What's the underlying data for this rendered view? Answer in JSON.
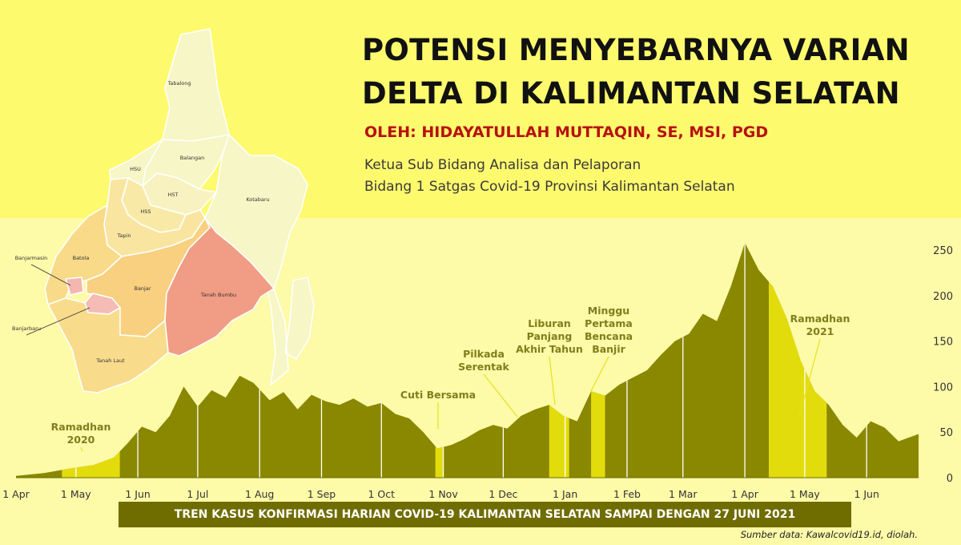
{
  "header": {
    "title_line1": "POTENSI MENYEBARNYA VARIAN",
    "title_line2": "DELTA DI KALIMANTAN SELATAN",
    "author": "OLEH: HIDAYATULLAH MUTTAQIN, SE, MSI, PGD",
    "role_line1": "Ketua Sub Bidang Analisa dan Pelaporan",
    "role_line2": "Bidang 1 Satgas Covid-19 Provinsi Kalimantan Selatan"
  },
  "map": {
    "regions": [
      {
        "name": "Tabalong",
        "color": "#f6f6c6"
      },
      {
        "name": "Balangan",
        "color": "#f6f6c6"
      },
      {
        "name": "HSU",
        "color": "#f6f6c6"
      },
      {
        "name": "HST",
        "color": "#f8f2c0"
      },
      {
        "name": "HSS",
        "color": "#f9e9a6"
      },
      {
        "name": "Kotabaru",
        "color": "#f6f6c6"
      },
      {
        "name": "Tapin",
        "color": "#f9e5a0"
      },
      {
        "name": "Batola",
        "color": "#f8da88"
      },
      {
        "name": "Banjarmasin",
        "color": "#f4b6b0"
      },
      {
        "name": "Banjar",
        "color": "#f8d080"
      },
      {
        "name": "Tanah Bumbu",
        "color": "#f19c84"
      },
      {
        "name": "Banjarbaru",
        "color": "#f4bcb4"
      },
      {
        "name": "Tanah Laut",
        "color": "#f8dc8c"
      }
    ]
  },
  "chart_data": {
    "type": "area",
    "title": "TREN KASUS KONFIRMASI HARIAN  COVID-19 KALIMANTAN SELATAN SAMPAI DENGAN 27 JUNI 2021",
    "x_start": "2020-04-01",
    "x_end": "2021-06-27",
    "xticks": [
      {
        "label": "1 Apr",
        "date": "2020-04-01"
      },
      {
        "label": "1 May",
        "date": "2020-05-01"
      },
      {
        "label": "1 Jun",
        "date": "2020-06-01"
      },
      {
        "label": "1 Jul",
        "date": "2020-07-01"
      },
      {
        "label": "1 Aug",
        "date": "2020-08-01"
      },
      {
        "label": "1 Sep",
        "date": "2020-09-01"
      },
      {
        "label": "1 Oct",
        "date": "2020-10-01"
      },
      {
        "label": "1 Nov",
        "date": "2020-11-01"
      },
      {
        "label": "1 Dec",
        "date": "2020-12-01"
      },
      {
        "label": "1 Jan",
        "date": "2021-01-01"
      },
      {
        "label": "1 Feb",
        "date": "2021-02-01"
      },
      {
        "label": "1 Mar",
        "date": "2021-03-01"
      },
      {
        "label": "1 Apr",
        "date": "2021-04-01"
      },
      {
        "label": "1 May",
        "date": "2021-05-01"
      },
      {
        "label": "1 Jun",
        "date": "2021-06-01"
      }
    ],
    "yticks": [
      0,
      50,
      100,
      150,
      200,
      250
    ],
    "ylim": [
      0,
      260
    ],
    "series": [
      {
        "color": "#8a8700",
        "points": [
          [
            "2020-04-01",
            2
          ],
          [
            "2020-04-15",
            5
          ],
          [
            "2020-04-28",
            10
          ],
          [
            "2020-05-10",
            14
          ],
          [
            "2020-05-20",
            22
          ],
          [
            "2020-05-27",
            38
          ],
          [
            "2020-06-03",
            56
          ],
          [
            "2020-06-10",
            50
          ],
          [
            "2020-06-17",
            68
          ],
          [
            "2020-06-24",
            100
          ],
          [
            "2020-07-01",
            78
          ],
          [
            "2020-07-08",
            96
          ],
          [
            "2020-07-15",
            88
          ],
          [
            "2020-07-22",
            112
          ],
          [
            "2020-07-29",
            104
          ],
          [
            "2020-08-06",
            85
          ],
          [
            "2020-08-13",
            94
          ],
          [
            "2020-08-20",
            75
          ],
          [
            "2020-08-27",
            91
          ],
          [
            "2020-09-03",
            84
          ],
          [
            "2020-09-10",
            80
          ],
          [
            "2020-09-17",
            87
          ],
          [
            "2020-09-24",
            78
          ],
          [
            "2020-10-01",
            82
          ],
          [
            "2020-10-08",
            70
          ],
          [
            "2020-10-15",
            65
          ],
          [
            "2020-10-22",
            50
          ],
          [
            "2020-10-29",
            32
          ],
          [
            "2020-11-05",
            36
          ],
          [
            "2020-11-12",
            43
          ],
          [
            "2020-11-19",
            52
          ],
          [
            "2020-11-26",
            58
          ],
          [
            "2020-12-03",
            54
          ],
          [
            "2020-12-10",
            68
          ],
          [
            "2020-12-17",
            75
          ],
          [
            "2020-12-24",
            80
          ],
          [
            "2020-12-31",
            68
          ],
          [
            "2021-01-07",
            62
          ],
          [
            "2021-01-14",
            95
          ],
          [
            "2021-01-21",
            90
          ],
          [
            "2021-01-28",
            102
          ],
          [
            "2021-02-04",
            110
          ],
          [
            "2021-02-11",
            118
          ],
          [
            "2021-02-18",
            135
          ],
          [
            "2021-02-25",
            150
          ],
          [
            "2021-03-04",
            158
          ],
          [
            "2021-03-11",
            180
          ],
          [
            "2021-03-18",
            172
          ],
          [
            "2021-03-25",
            210
          ],
          [
            "2021-04-01",
            258
          ],
          [
            "2021-04-08",
            228
          ],
          [
            "2021-04-15",
            210
          ],
          [
            "2021-04-22",
            175
          ],
          [
            "2021-04-29",
            128
          ],
          [
            "2021-05-06",
            95
          ],
          [
            "2021-05-13",
            80
          ],
          [
            "2021-05-20",
            58
          ],
          [
            "2021-05-27",
            44
          ],
          [
            "2021-06-03",
            62
          ],
          [
            "2021-06-10",
            55
          ],
          [
            "2021-06-17",
            40
          ],
          [
            "2021-06-27",
            48
          ]
        ]
      }
    ],
    "highlights": [
      {
        "label": "Ramadhan 2020",
        "start": "2020-04-24",
        "end": "2020-05-23",
        "color": "#e3dc0c"
      },
      {
        "label": "Cuti Bersama",
        "start": "2020-10-28",
        "end": "2020-11-01",
        "color": "#e3dc0c"
      },
      {
        "label": "Libur Panjang Akhir Tahun",
        "start": "2020-12-24",
        "end": "2021-01-03",
        "color": "#e3dc0c"
      },
      {
        "label": "Minggu Pertama Bencana Banjir",
        "start": "2021-01-14",
        "end": "2021-01-21",
        "color": "#e3dc0c"
      },
      {
        "label": "Ramadhan 2021",
        "start": "2021-04-13",
        "end": "2021-05-12",
        "color": "#e3dc0c"
      }
    ],
    "events": [
      {
        "label_lines": [
          "Ramadhan",
          "2020"
        ],
        "date": "2020-05-05",
        "color": "#807e1c"
      },
      {
        "label_lines": [
          "Cuti Bersama"
        ],
        "date": "2020-10-30",
        "color": "#807e1c"
      },
      {
        "label_lines": [
          "Pilkada",
          "Serentak"
        ],
        "date": "2020-12-09",
        "color": "#807e1c"
      },
      {
        "label_lines": [
          "Liburan",
          "Panjang",
          "Akhir Tahun"
        ],
        "date": "2020-12-28",
        "color": "#807e1c"
      },
      {
        "label_lines": [
          "Minggu",
          "Pertama",
          "Bencana",
          "Banjir"
        ],
        "date": "2021-01-18",
        "color": "#807e1c"
      },
      {
        "label_lines": [
          "Ramadhan",
          "2021"
        ],
        "date": "2021-04-28",
        "color": "#807e1c"
      }
    ]
  },
  "footer": {
    "source_prefix": "Sumber data: ",
    "source_site": "Kawalcovid19.id",
    "source_suffix": ", diolah."
  }
}
